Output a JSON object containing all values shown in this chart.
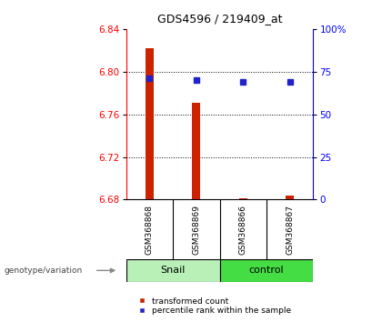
{
  "title": "GDS4596 / 219409_at",
  "samples": [
    "GSM368868",
    "GSM368869",
    "GSM368866",
    "GSM368867"
  ],
  "groups": [
    "Snail",
    "Snail",
    "control",
    "control"
  ],
  "group_colors_snail": "#b8f0b8",
  "group_colors_control": "#44dd44",
  "transformed_count": [
    6.822,
    6.771,
    6.681,
    6.684
  ],
  "percentile_rank": [
    71.0,
    70.0,
    69.0,
    69.0
  ],
  "ylim_left": [
    6.68,
    6.84
  ],
  "ylim_right": [
    0,
    100
  ],
  "yticks_left": [
    6.68,
    6.72,
    6.76,
    6.8,
    6.84
  ],
  "yticks_right": [
    0,
    25,
    50,
    75,
    100
  ],
  "bar_color": "#cc2200",
  "dot_color": "#2222cc",
  "bar_width": 0.18,
  "background_color": "#ffffff",
  "grid_color": "#000000",
  "group_label_text": "genotype/variation",
  "legend_items": [
    "transformed count",
    "percentile rank within the sample"
  ]
}
